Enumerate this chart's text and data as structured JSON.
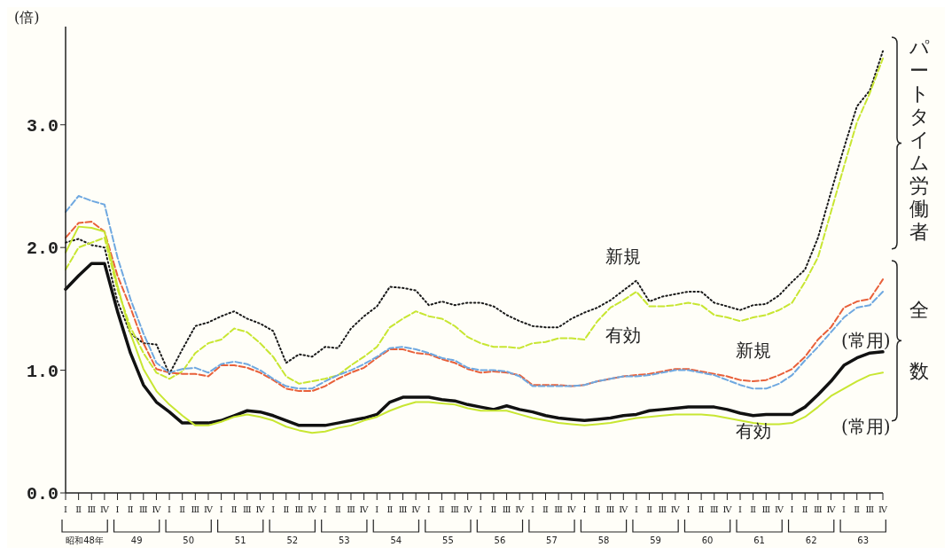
{
  "chart_data": {
    "type": "line",
    "ylabel": "(倍)",
    "categories": [
      "Ⅰ",
      "Ⅱ",
      "Ⅲ",
      "Ⅳ",
      "Ⅰ",
      "Ⅱ",
      "Ⅲ",
      "Ⅳ",
      "Ⅰ",
      "Ⅱ",
      "Ⅲ",
      "Ⅳ",
      "Ⅰ",
      "Ⅱ",
      "Ⅲ",
      "Ⅳ",
      "Ⅰ",
      "Ⅱ",
      "Ⅲ",
      "Ⅳ",
      "Ⅰ",
      "Ⅱ",
      "Ⅲ",
      "Ⅳ",
      "Ⅰ",
      "Ⅱ",
      "Ⅲ",
      "Ⅳ",
      "Ⅰ",
      "Ⅱ",
      "Ⅲ",
      "Ⅳ",
      "Ⅰ",
      "Ⅱ",
      "Ⅲ",
      "Ⅳ",
      "Ⅰ",
      "Ⅱ",
      "Ⅲ",
      "Ⅳ",
      "Ⅰ",
      "Ⅱ",
      "Ⅲ",
      "Ⅳ",
      "Ⅰ",
      "Ⅱ",
      "Ⅲ",
      "Ⅳ",
      "Ⅰ",
      "Ⅱ",
      "Ⅲ",
      "Ⅳ",
      "Ⅰ",
      "Ⅱ",
      "Ⅲ",
      "Ⅳ",
      "Ⅰ",
      "Ⅱ",
      "Ⅲ",
      "Ⅳ",
      "Ⅰ",
      "Ⅱ",
      "Ⅲ",
      "Ⅳ"
    ],
    "series": [
      {
        "name": "新規",
        "color": "#1a1a1a",
        "line_style": "dotted",
        "values": [
          2.04,
          2.07,
          2.02,
          2.0,
          1.56,
          1.3,
          1.22,
          1.21,
          0.97,
          1.17,
          1.36,
          1.39,
          1.44,
          1.48,
          1.42,
          1.38,
          1.32,
          1.06,
          1.13,
          1.11,
          1.19,
          1.18,
          1.34,
          1.44,
          1.52,
          1.68,
          1.67,
          1.65,
          1.53,
          1.56,
          1.53,
          1.55,
          1.55,
          1.52,
          1.45,
          1.4,
          1.36,
          1.35,
          1.35,
          1.42,
          1.47,
          1.51,
          1.57,
          1.65,
          1.73,
          1.56,
          1.6,
          1.62,
          1.64,
          1.64,
          1.55,
          1.52,
          1.49,
          1.53,
          1.54,
          1.61,
          1.72,
          1.82,
          2.08,
          2.45,
          2.81,
          3.15,
          3.28,
          3.6
        ]
      },
      {
        "name": "有効",
        "color": "#c8e632",
        "line_style": "dashed",
        "values": [
          1.82,
          2.0,
          2.04,
          2.08,
          1.66,
          1.35,
          1.14,
          0.98,
          0.93,
          0.99,
          1.14,
          1.22,
          1.25,
          1.34,
          1.31,
          1.22,
          1.11,
          0.95,
          0.89,
          0.91,
          0.93,
          0.96,
          1.04,
          1.11,
          1.19,
          1.35,
          1.42,
          1.48,
          1.44,
          1.42,
          1.36,
          1.27,
          1.22,
          1.19,
          1.19,
          1.18,
          1.22,
          1.23,
          1.26,
          1.26,
          1.25,
          1.4,
          1.51,
          1.57,
          1.64,
          1.52,
          1.52,
          1.53,
          1.55,
          1.53,
          1.45,
          1.43,
          1.4,
          1.43,
          1.45,
          1.49,
          1.55,
          1.72,
          1.92,
          2.29,
          2.66,
          3.02,
          3.26,
          3.54
        ]
      },
      {
        "name": "新規",
        "color": "#e8603a",
        "line_style": "dashed",
        "values": [
          2.08,
          2.2,
          2.21,
          2.13,
          1.77,
          1.51,
          1.22,
          1.01,
          0.98,
          0.97,
          0.97,
          0.95,
          1.04,
          1.04,
          1.02,
          0.98,
          0.92,
          0.85,
          0.83,
          0.83,
          0.87,
          0.93,
          0.98,
          1.02,
          1.1,
          1.17,
          1.17,
          1.14,
          1.13,
          1.09,
          1.06,
          1.01,
          0.98,
          0.99,
          0.98,
          0.96,
          0.88,
          0.88,
          0.88,
          0.87,
          0.88,
          0.91,
          0.93,
          0.95,
          0.96,
          0.97,
          0.99,
          1.01,
          1.01,
          0.99,
          0.97,
          0.95,
          0.92,
          0.91,
          0.92,
          0.96,
          1.01,
          1.11,
          1.25,
          1.35,
          1.51,
          1.56,
          1.58,
          1.74
        ]
      },
      {
        "name": "(常用)",
        "color": "#6fa8e0",
        "line_style": "dashed",
        "values": [
          2.29,
          2.42,
          2.38,
          2.35,
          1.92,
          1.58,
          1.3,
          1.06,
          0.98,
          1.01,
          1.02,
          0.98,
          1.05,
          1.07,
          1.05,
          1.0,
          0.93,
          0.87,
          0.85,
          0.85,
          0.91,
          0.96,
          1.0,
          1.05,
          1.11,
          1.18,
          1.19,
          1.17,
          1.14,
          1.1,
          1.08,
          1.02,
          1.0,
          1.0,
          0.99,
          0.95,
          0.87,
          0.87,
          0.87,
          0.87,
          0.88,
          0.91,
          0.93,
          0.95,
          0.95,
          0.96,
          0.98,
          1.0,
          1.0,
          0.98,
          0.96,
          0.92,
          0.88,
          0.85,
          0.85,
          0.89,
          0.96,
          1.08,
          1.19,
          1.31,
          1.43,
          1.51,
          1.53,
          1.64
        ]
      },
      {
        "name": "有効",
        "color": "#111111",
        "line_style": "solid",
        "values": [
          1.66,
          1.77,
          1.87,
          1.87,
          1.48,
          1.14,
          0.88,
          0.74,
          0.66,
          0.57,
          0.57,
          0.57,
          0.59,
          0.63,
          0.67,
          0.66,
          0.63,
          0.59,
          0.55,
          0.55,
          0.55,
          0.57,
          0.59,
          0.61,
          0.64,
          0.74,
          0.78,
          0.78,
          0.78,
          0.76,
          0.75,
          0.72,
          0.7,
          0.68,
          0.71,
          0.68,
          0.66,
          0.63,
          0.61,
          0.6,
          0.59,
          0.6,
          0.61,
          0.63,
          0.64,
          0.67,
          0.68,
          0.69,
          0.7,
          0.7,
          0.7,
          0.68,
          0.65,
          0.63,
          0.64,
          0.64,
          0.64,
          0.7,
          0.8,
          0.91,
          1.04,
          1.1,
          1.14,
          1.15
        ]
      },
      {
        "name": "(常用)",
        "color": "#c8e632",
        "line_style": "solid",
        "values": [
          1.96,
          2.17,
          2.16,
          2.13,
          1.69,
          1.3,
          1.01,
          0.83,
          0.72,
          0.63,
          0.55,
          0.55,
          0.58,
          0.62,
          0.64,
          0.62,
          0.59,
          0.54,
          0.51,
          0.49,
          0.5,
          0.53,
          0.55,
          0.59,
          0.62,
          0.67,
          0.71,
          0.74,
          0.74,
          0.73,
          0.72,
          0.69,
          0.67,
          0.67,
          0.67,
          0.64,
          0.61,
          0.59,
          0.57,
          0.56,
          0.55,
          0.56,
          0.57,
          0.59,
          0.61,
          0.62,
          0.63,
          0.64,
          0.64,
          0.64,
          0.63,
          0.61,
          0.59,
          0.57,
          0.56,
          0.56,
          0.57,
          0.62,
          0.7,
          0.79,
          0.85,
          0.91,
          0.96,
          0.98
        ]
      }
    ],
    "ylim": [
      0,
      3.8
    ],
    "yticks": [
      {
        "value": 0,
        "label": "0.0"
      },
      {
        "value": 1,
        "label": "1.0"
      },
      {
        "value": 2,
        "label": "2.0"
      },
      {
        "value": 3,
        "label": "3.0"
      }
    ],
    "grid": false,
    "legend": false,
    "marker": "none",
    "annotations": [
      "昭和48年",
      "49",
      "50",
      "51",
      "52",
      "53",
      "54",
      "55",
      "56",
      "57",
      "58",
      "59",
      "60",
      "61",
      "62",
      "63",
      "パートタイム労働者",
      "全数"
    ]
  }
}
